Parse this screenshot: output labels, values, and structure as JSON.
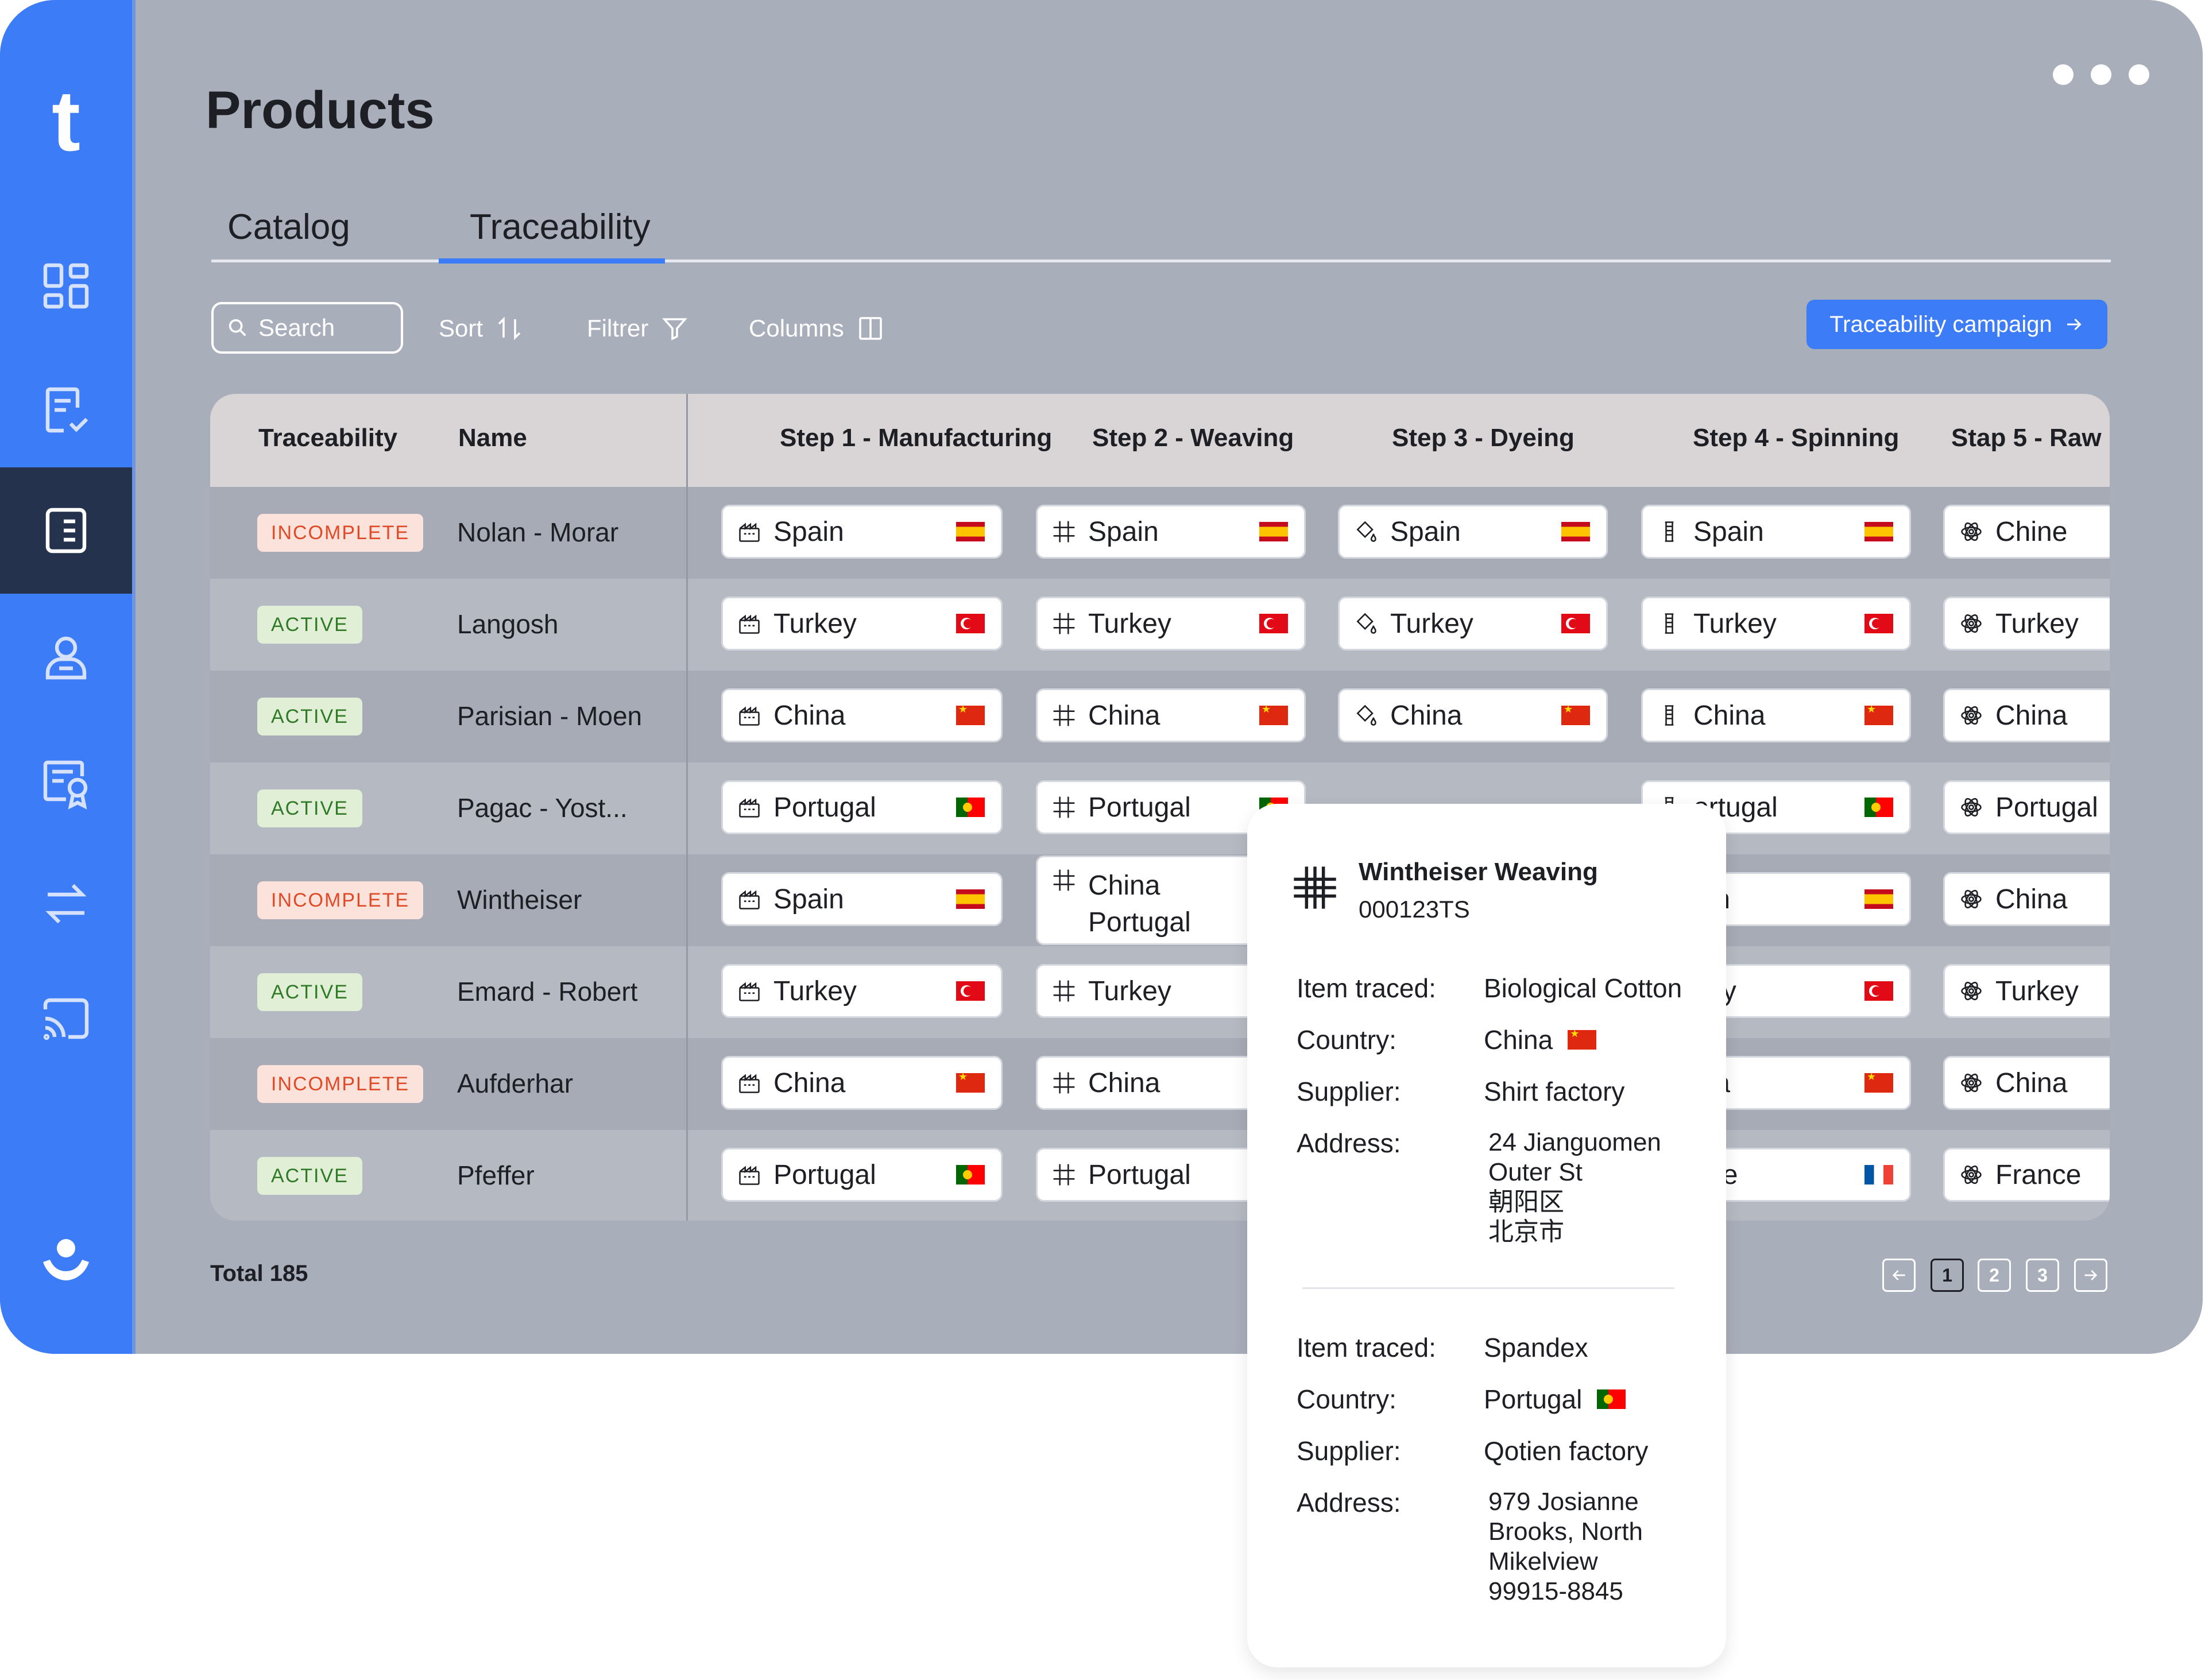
{
  "app": {
    "logo": "t",
    "page_title": "Products"
  },
  "sidebar": {
    "items": [
      {
        "name": "dashboard",
        "icon": "grid-icon"
      },
      {
        "name": "reports",
        "icon": "document-check-icon"
      },
      {
        "name": "products",
        "icon": "list-document-icon",
        "active": true
      },
      {
        "name": "users",
        "icon": "user-icon"
      },
      {
        "name": "certificates",
        "icon": "certificate-icon"
      },
      {
        "name": "transfers",
        "icon": "arrows-swap-icon"
      },
      {
        "name": "cast",
        "icon": "cast-icon"
      }
    ],
    "profile_icon": "profile-icon"
  },
  "tabs": [
    {
      "label": "Catalog",
      "active": false
    },
    {
      "label": "Traceability",
      "active": true
    }
  ],
  "toolbar": {
    "search_placeholder": "Search",
    "sort_label": "Sort",
    "filter_label": "Filtrer",
    "columns_label": "Columns",
    "campaign_label": "Traceability campaign"
  },
  "table": {
    "headers": [
      "Traceability",
      "Name",
      "Step 1 - Manufacturing",
      "Step 2 - Weaving",
      "Step 3 - Dyeing",
      "Step 4 - Spinning",
      "Stap 5 - Raw"
    ],
    "rows": [
      {
        "status": "INCOMPLETE",
        "name": "Nolan - Morar",
        "steps": [
          "Spain",
          "Spain",
          "Spain",
          "Spain",
          "Chine"
        ],
        "flags": [
          "es",
          "es",
          "es",
          "es",
          ""
        ]
      },
      {
        "status": "ACTIVE",
        "name": "Langosh",
        "steps": [
          "Turkey",
          "Turkey",
          "Turkey",
          "Turkey",
          "Turkey"
        ],
        "flags": [
          "tr",
          "tr",
          "tr",
          "tr",
          ""
        ]
      },
      {
        "status": "ACTIVE",
        "name": "Parisian - Moen",
        "steps": [
          "China",
          "China",
          "China",
          "China",
          "China"
        ],
        "flags": [
          "cn",
          "cn",
          "cn",
          "cn",
          ""
        ]
      },
      {
        "status": "ACTIVE",
        "name": "Pagac - Yost...",
        "steps": [
          "Portugal",
          "Portugal",
          "",
          "ortugal",
          "Portugal"
        ],
        "flags": [
          "pt",
          "pt",
          "",
          "pt",
          ""
        ]
      },
      {
        "status": "INCOMPLETE",
        "name": "Wintheiser",
        "steps": [
          "Spain",
          "China",
          "",
          "ain",
          "China"
        ],
        "step2_second": "Portugal",
        "flags": [
          "es",
          "",
          "",
          "es",
          ""
        ]
      },
      {
        "status": "ACTIVE",
        "name": "Emard - Robert",
        "steps": [
          "Turkey",
          "Turkey",
          "",
          "key",
          "Turkey"
        ],
        "flags": [
          "tr",
          "",
          "",
          "tr",
          ""
        ]
      },
      {
        "status": "INCOMPLETE",
        "name": "Aufderhar",
        "steps": [
          "China",
          "China",
          "",
          "ina",
          "China"
        ],
        "flags": [
          "cn",
          "",
          "",
          "cn",
          ""
        ]
      },
      {
        "status": "ACTIVE",
        "name": "Pfeffer",
        "steps": [
          "Portugal",
          "Portugal",
          "",
          "nce",
          "France"
        ],
        "flags": [
          "pt",
          "",
          "",
          "fr",
          ""
        ]
      }
    ],
    "step_icons": [
      "factory-icon",
      "weave-icon",
      "dye-bucket-icon",
      "spool-icon",
      "atom-icon"
    ]
  },
  "footer": {
    "total_label": "Total 185",
    "pages": [
      "1",
      "2",
      "3"
    ],
    "current_page": "1"
  },
  "popover": {
    "title": "Wintheiser Weaving",
    "code": "000123TS",
    "labels": {
      "item": "Item traced:",
      "country": "Country:",
      "supplier": "Supplier:",
      "address": "Address:"
    },
    "entries": [
      {
        "item": "Biological Cotton",
        "country": "China",
        "flag": "cn",
        "supplier": "Shirt factory",
        "address": "24 Jianguomen\nOuter St\n朝阳区\n北京市"
      },
      {
        "item": "Spandex",
        "country": "Portugal",
        "flag": "pt",
        "supplier": "Qotien factory",
        "address": "979 Josianne\nBrooks, North\nMikelview\n99915-8845"
      }
    ]
  },
  "colors": {
    "accent": "#3d7cf7",
    "sidebar_active": "#25324d",
    "incomplete": "#e04a26",
    "active": "#2f7a27"
  }
}
